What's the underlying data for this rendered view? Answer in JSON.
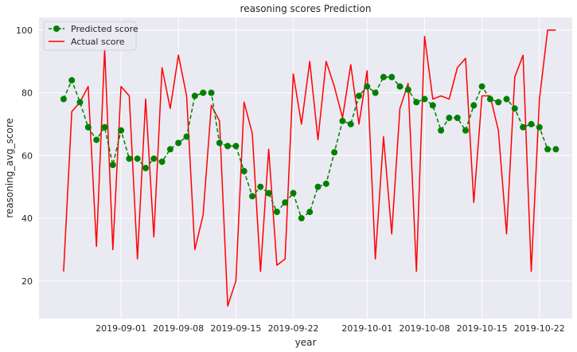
{
  "chart_data": {
    "type": "line",
    "title": "reasoning scores Prediction",
    "xlabel": "year",
    "ylabel": "reasoning_avg_score",
    "x_type": "date",
    "xlim": [
      "2019-08-22",
      "2019-10-26"
    ],
    "ylim": [
      8,
      104
    ],
    "grid": true,
    "legend": "top-left",
    "x_ticks": [
      "2019-09-01",
      "2019-09-08",
      "2019-09-15",
      "2019-09-22",
      "2019-10-01",
      "2019-10-08",
      "2019-10-15",
      "2019-10-22"
    ],
    "y_ticks": [
      20,
      40,
      60,
      80,
      100
    ],
    "colors": {
      "background": "#eaeaf2",
      "grid": "#ffffff",
      "predicted": "#008000",
      "actual": "#ff0000"
    },
    "series": [
      {
        "name": "Predicted score",
        "style": "dashed-line-circle-markers",
        "color": "#008000",
        "x": [
          "2019-08-25",
          "2019-08-26",
          "2019-08-27",
          "2019-08-28",
          "2019-08-29",
          "2019-08-30",
          "2019-08-31",
          "2019-09-01",
          "2019-09-02",
          "2019-09-03",
          "2019-09-04",
          "2019-09-05",
          "2019-09-06",
          "2019-09-07",
          "2019-09-08",
          "2019-09-09",
          "2019-09-10",
          "2019-09-11",
          "2019-09-12",
          "2019-09-13",
          "2019-09-14",
          "2019-09-15",
          "2019-09-16",
          "2019-09-17",
          "2019-09-18",
          "2019-09-19",
          "2019-09-20",
          "2019-09-21",
          "2019-09-22",
          "2019-09-23",
          "2019-09-24",
          "2019-09-25",
          "2019-09-26",
          "2019-09-27",
          "2019-09-28",
          "2019-09-29",
          "2019-09-30",
          "2019-10-01",
          "2019-10-02",
          "2019-10-03",
          "2019-10-04",
          "2019-10-05",
          "2019-10-06",
          "2019-10-07",
          "2019-10-08",
          "2019-10-09",
          "2019-10-10",
          "2019-10-11",
          "2019-10-12",
          "2019-10-13",
          "2019-10-14",
          "2019-10-15",
          "2019-10-16",
          "2019-10-17",
          "2019-10-18",
          "2019-10-19",
          "2019-10-20",
          "2019-10-21",
          "2019-10-22",
          "2019-10-23",
          "2019-10-24"
        ],
        "y": [
          78,
          84,
          77,
          69,
          65,
          69,
          57,
          68,
          59,
          59,
          56,
          59,
          58,
          62,
          64,
          66,
          79,
          80,
          80,
          64,
          63,
          63,
          55,
          47,
          50,
          48,
          42,
          45,
          48,
          40,
          42,
          50,
          51,
          61,
          71,
          70,
          79,
          82,
          80,
          85,
          85,
          82,
          81,
          77,
          78,
          76,
          68,
          72,
          72,
          68,
          76,
          82,
          78,
          77,
          78,
          75,
          69,
          70,
          69,
          62,
          62
        ]
      },
      {
        "name": "Actual score",
        "style": "solid-line",
        "color": "#ff0000",
        "x": [
          "2019-08-25",
          "2019-08-26",
          "2019-08-27",
          "2019-08-28",
          "2019-08-29",
          "2019-08-30",
          "2019-08-31",
          "2019-09-01",
          "2019-09-02",
          "2019-09-03",
          "2019-09-04",
          "2019-09-05",
          "2019-09-06",
          "2019-09-07",
          "2019-09-08",
          "2019-09-09",
          "2019-09-10",
          "2019-09-11",
          "2019-09-12",
          "2019-09-13",
          "2019-09-14",
          "2019-09-15",
          "2019-09-16",
          "2019-09-17",
          "2019-09-18",
          "2019-09-19",
          "2019-09-20",
          "2019-09-21",
          "2019-09-22",
          "2019-09-23",
          "2019-09-24",
          "2019-09-25",
          "2019-09-26",
          "2019-09-27",
          "2019-09-28",
          "2019-09-29",
          "2019-09-30",
          "2019-10-01",
          "2019-10-02",
          "2019-10-03",
          "2019-10-04",
          "2019-10-05",
          "2019-10-06",
          "2019-10-07",
          "2019-10-08",
          "2019-10-09",
          "2019-10-10",
          "2019-10-11",
          "2019-10-12",
          "2019-10-13",
          "2019-10-14",
          "2019-10-15",
          "2019-10-16",
          "2019-10-17",
          "2019-10-18",
          "2019-10-19",
          "2019-10-20",
          "2019-10-21",
          "2019-10-22",
          "2019-10-23",
          "2019-10-24"
        ],
        "y": [
          23,
          74,
          77,
          82,
          31,
          94,
          30,
          82,
          79,
          27,
          78,
          34,
          88,
          75,
          92,
          79,
          30,
          41,
          76,
          71,
          12,
          20,
          77,
          67,
          23,
          62,
          25,
          27,
          86,
          70,
          90,
          65,
          90,
          82,
          72,
          89,
          70,
          87,
          27,
          66,
          35,
          75,
          83,
          23,
          98,
          78,
          79,
          78,
          88,
          91,
          45,
          79,
          79,
          68,
          35,
          85,
          92,
          23,
          78,
          100,
          100
        ]
      }
    ]
  }
}
